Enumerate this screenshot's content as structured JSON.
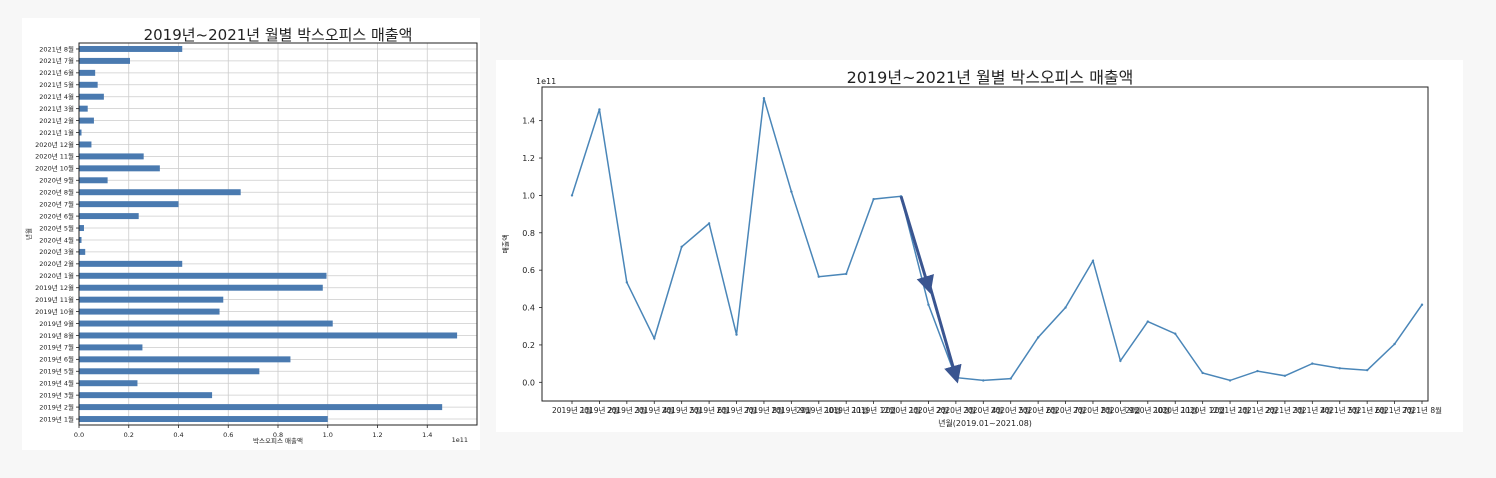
{
  "chart_data": [
    {
      "type": "bar",
      "orientation": "horizontal",
      "title": "2019년~2021년 월별 박스오피스 매출액",
      "xlabel": "박스오피스 매출액",
      "ylabel": "년월",
      "x_offset_label": "1e11",
      "xlim": [
        0,
        1.6
      ],
      "xticks": [
        "0.0",
        "0.2",
        "0.4",
        "0.6",
        "0.8",
        "1.0",
        "1.2",
        "1.4"
      ],
      "grid": true,
      "color": "#4a7ab0",
      "categories": [
        "2019년 1월",
        "2019년 2월",
        "2019년 3월",
        "2019년 4월",
        "2019년 5월",
        "2019년 6월",
        "2019년 7월",
        "2019년 8월",
        "2019년 9월",
        "2019년 10월",
        "2019년 11월",
        "2019년 12월",
        "2020년 1월",
        "2020년 2월",
        "2020년 3월",
        "2020년 4월",
        "2020년 5월",
        "2020년 6월",
        "2020년 7월",
        "2020년 8월",
        "2020년 9월",
        "2020년 10월",
        "2020년 11월",
        "2020년 12월",
        "2021년 1월",
        "2021년 2월",
        "2021년 3월",
        "2021년 4월",
        "2021년 5월",
        "2021년 6월",
        "2021년 7월",
        "2021년 8월"
      ],
      "values": [
        1.0,
        1.46,
        0.535,
        0.235,
        0.725,
        0.85,
        0.255,
        1.52,
        1.02,
        0.565,
        0.58,
        0.98,
        0.995,
        0.415,
        0.025,
        0.01,
        0.02,
        0.24,
        0.4,
        0.65,
        0.115,
        0.325,
        0.26,
        0.05,
        0.01,
        0.06,
        0.035,
        0.1,
        0.075,
        0.065,
        0.205,
        0.415
      ]
    },
    {
      "type": "line",
      "title": "2019년~2021년 월별 박스오피스 매출액",
      "xlabel": "년월(2019.01~2021.08)",
      "ylabel": "매출액",
      "y_offset_label": "1e11",
      "ylim": [
        -0.1,
        1.58
      ],
      "yticks": [
        "0.0",
        "0.2",
        "0.4",
        "0.6",
        "0.8",
        "1.0",
        "1.2",
        "1.4"
      ],
      "grid": false,
      "color": "#4a86b8",
      "arrow_color": "#3a5590",
      "arrow_from": "2020년 1월",
      "arrow_to": "2020년 3월",
      "categories": [
        "2019년 1월",
        "2019년 2월",
        "2019년 3월",
        "2019년 4월",
        "2019년 5월",
        "2019년 6월",
        "2019년 7월",
        "2019년 8월",
        "2019년 9월",
        "2019년 10월",
        "2019년 11월",
        "2019년 12월",
        "2020년 1월",
        "2020년 2월",
        "2020년 3월",
        "2020년 4월",
        "2020년 5월",
        "2020년 6월",
        "2020년 7월",
        "2020년 8월",
        "2020년 9월",
        "2020년 10월",
        "2020년 11월",
        "2020년 12월",
        "2021년 1월",
        "2021년 2월",
        "2021년 3월",
        "2021년 4월",
        "2021년 5월",
        "2021년 6월",
        "2021년 7월",
        "2021년 8월"
      ],
      "values": [
        1.0,
        1.46,
        0.535,
        0.235,
        0.725,
        0.85,
        0.255,
        1.52,
        1.02,
        0.565,
        0.58,
        0.98,
        0.995,
        0.415,
        0.025,
        0.01,
        0.02,
        0.24,
        0.4,
        0.65,
        0.115,
        0.325,
        0.26,
        0.05,
        0.01,
        0.06,
        0.035,
        0.1,
        0.075,
        0.065,
        0.205,
        0.415
      ]
    }
  ]
}
